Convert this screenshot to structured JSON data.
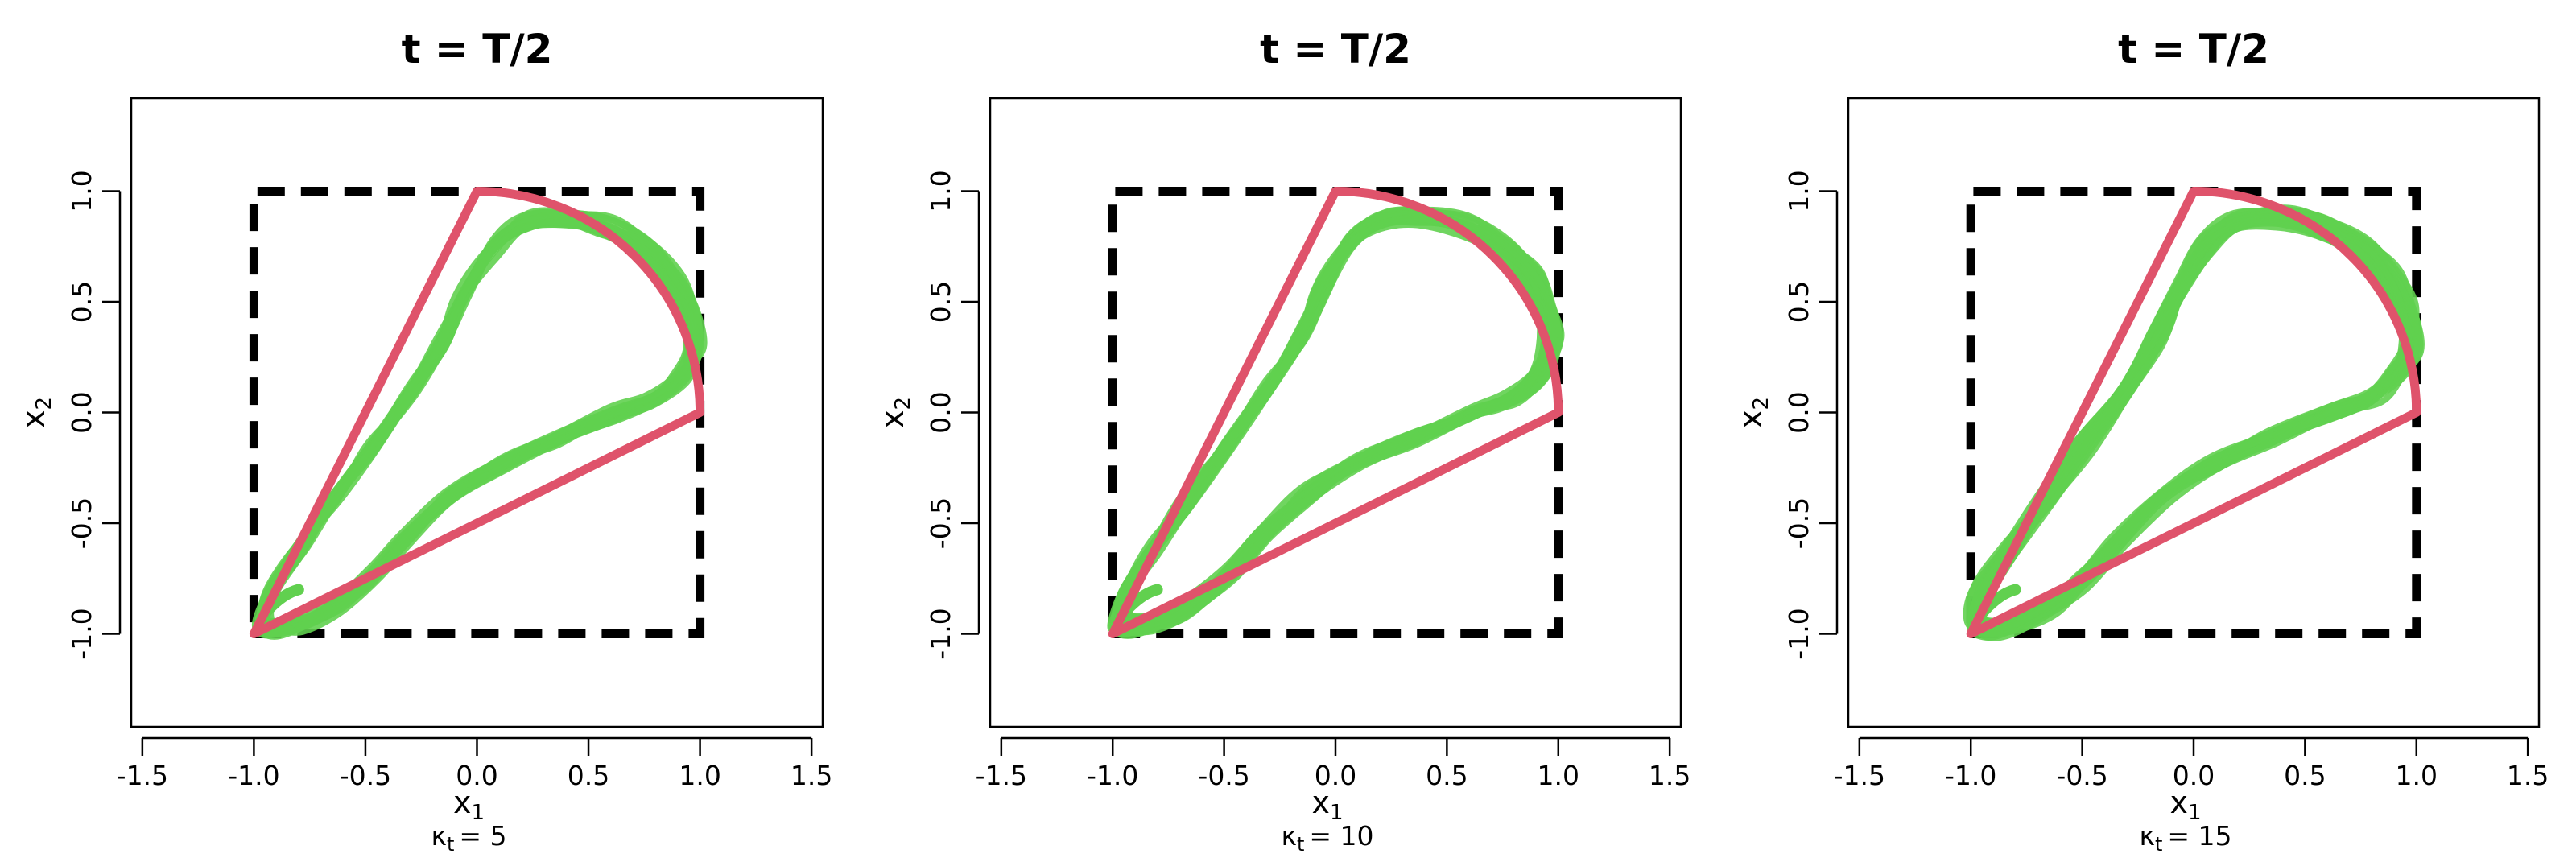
{
  "chart_data": [
    {
      "type": "line",
      "title": "t = T/2",
      "xlabel": "x",
      "xlabel_sub": "1",
      "ylabel": "x",
      "ylabel_sub": "2",
      "kappa_label": {
        "symbol": "κ",
        "sub": "t",
        "value": "= 5"
      },
      "xlim": [
        -1.55,
        1.55
      ],
      "ylim": [
        -1.42,
        1.42
      ],
      "x_ticks": [
        -1.5,
        -1.0,
        -0.5,
        0.0,
        0.5,
        1.0,
        1.5
      ],
      "x_tick_labels": [
        "-1.5",
        "-1.0",
        "-0.5",
        "0.0",
        "0.5",
        "1.0",
        "1.5"
      ],
      "y_ticks": [
        -1.0,
        -0.5,
        0.0,
        0.5,
        1.0
      ],
      "y_tick_labels": [
        "-1.0",
        "-0.5",
        "0.0",
        "0.5",
        "1.0"
      ],
      "grid": false,
      "series": [
        {
          "style": "dashed-square",
          "color": "#000000",
          "points": [
            [
              -1,
              -1
            ],
            [
              1,
              -1
            ],
            [
              1,
              1
            ],
            [
              -1,
              1
            ],
            [
              -1,
              -1
            ]
          ]
        },
        {
          "style": "green-trajectories",
          "color": "#61D04F",
          "count": 20
        },
        {
          "style": "sector-outline",
          "color": "#DF536B",
          "apex": [
            -1,
            -1
          ],
          "from": [
            1,
            0
          ],
          "to": [
            0,
            1
          ],
          "arc_center": [
            0,
            0
          ],
          "arc_radius": 1
        }
      ]
    },
    {
      "type": "line",
      "title": "t = T/2",
      "xlabel": "x",
      "xlabel_sub": "1",
      "ylabel": "x",
      "ylabel_sub": "2",
      "kappa_label": {
        "symbol": "κ",
        "sub": "t",
        "value": "= 10"
      },
      "xlim": [
        -1.55,
        1.55
      ],
      "ylim": [
        -1.42,
        1.42
      ],
      "x_ticks": [
        -1.5,
        -1.0,
        -0.5,
        0.0,
        0.5,
        1.0,
        1.5
      ],
      "x_tick_labels": [
        "-1.5",
        "-1.0",
        "-0.5",
        "0.0",
        "0.5",
        "1.0",
        "1.5"
      ],
      "y_ticks": [
        -1.0,
        -0.5,
        0.0,
        0.5,
        1.0
      ],
      "y_tick_labels": [
        "-1.0",
        "-0.5",
        "0.0",
        "0.5",
        "1.0"
      ],
      "grid": false,
      "series": [
        {
          "style": "dashed-square",
          "color": "#000000",
          "points": [
            [
              -1,
              -1
            ],
            [
              1,
              -1
            ],
            [
              1,
              1
            ],
            [
              -1,
              1
            ],
            [
              -1,
              -1
            ]
          ]
        },
        {
          "style": "green-trajectories",
          "color": "#61D04F",
          "count": 20
        },
        {
          "style": "sector-outline",
          "color": "#DF536B",
          "apex": [
            -1,
            -1
          ],
          "from": [
            1,
            0
          ],
          "to": [
            0,
            1
          ],
          "arc_center": [
            0,
            0
          ],
          "arc_radius": 1
        }
      ]
    },
    {
      "type": "line",
      "title": "t = T/2",
      "xlabel": "x",
      "xlabel_sub": "1",
      "ylabel": "x",
      "ylabel_sub": "2",
      "kappa_label": {
        "symbol": "κ",
        "sub": "t",
        "value": "= 15"
      },
      "xlim": [
        -1.55,
        1.55
      ],
      "ylim": [
        -1.42,
        1.42
      ],
      "x_ticks": [
        -1.5,
        -1.0,
        -0.5,
        0.0,
        0.5,
        1.0,
        1.5
      ],
      "x_tick_labels": [
        "-1.5",
        "-1.0",
        "-0.5",
        "0.0",
        "0.5",
        "1.0",
        "1.5"
      ],
      "y_ticks": [
        -1.0,
        -0.5,
        0.0,
        0.5,
        1.0
      ],
      "y_tick_labels": [
        "-1.0",
        "-0.5",
        "0.0",
        "0.5",
        "1.0"
      ],
      "grid": false,
      "series": [
        {
          "style": "dashed-square",
          "color": "#000000",
          "points": [
            [
              -1,
              -1
            ],
            [
              1,
              -1
            ],
            [
              1,
              1
            ],
            [
              -1,
              1
            ],
            [
              -1,
              -1
            ]
          ]
        },
        {
          "style": "green-trajectories",
          "color": "#61D04F",
          "count": 20
        },
        {
          "style": "sector-outline",
          "color": "#DF536B",
          "apex": [
            -1,
            -1
          ],
          "from": [
            1,
            0
          ],
          "to": [
            0,
            1
          ],
          "arc_center": [
            0,
            0
          ],
          "arc_radius": 1
        }
      ]
    }
  ]
}
